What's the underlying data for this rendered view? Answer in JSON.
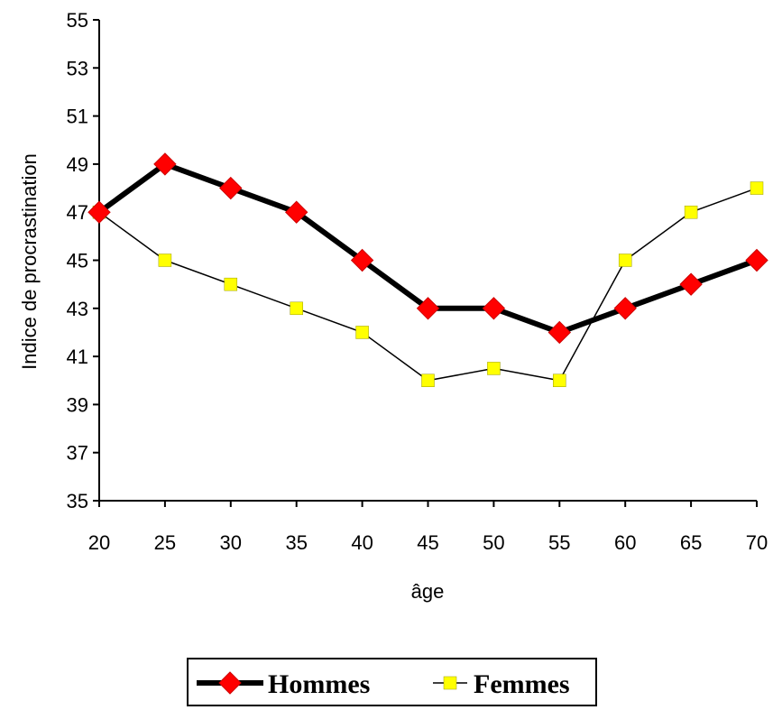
{
  "chart_data": {
    "type": "line",
    "title": "",
    "xlabel": "âge",
    "ylabel": "Indice de procrastination",
    "x": [
      20,
      25,
      30,
      35,
      40,
      45,
      50,
      55,
      60,
      65,
      70
    ],
    "x_ticks": [
      "20",
      "25",
      "30",
      "35",
      "40",
      "45",
      "50",
      "55",
      "60",
      "65",
      "70"
    ],
    "ylim": [
      35,
      55
    ],
    "y_ticks": [
      "35",
      "37",
      "39",
      "41",
      "43",
      "45",
      "47",
      "49",
      "51",
      "53",
      "55"
    ],
    "grid": false,
    "legend_position": "bottom",
    "series": [
      {
        "name": "Hommes",
        "values": [
          47,
          49,
          48,
          47,
          45,
          43,
          43,
          42,
          43,
          44,
          45
        ],
        "line_color": "#000000",
        "marker": "diamond",
        "marker_color": "#ff0000",
        "line_weight": "thick"
      },
      {
        "name": "Femmes",
        "values": [
          47,
          45,
          44,
          43,
          42,
          40,
          40.5,
          40,
          45,
          47,
          48
        ],
        "line_color": "#000000",
        "marker": "square",
        "marker_color": "#ffff00",
        "line_weight": "thin"
      }
    ]
  }
}
